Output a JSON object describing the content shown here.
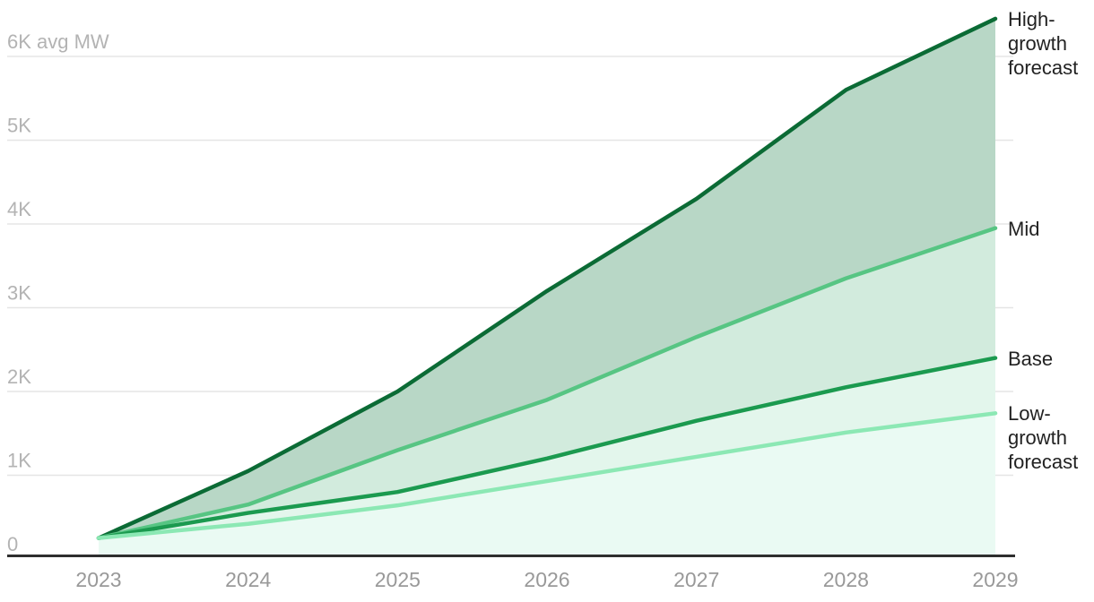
{
  "chart_data": {
    "type": "area",
    "title": "",
    "xlabel": "",
    "ylabel": "avg MW",
    "x": [
      2023,
      2024,
      2025,
      2026,
      2027,
      2028,
      2029
    ],
    "x_tick_labels": [
      "2023",
      "2024",
      "2025",
      "2026",
      "2027",
      "2028",
      "2029"
    ],
    "y_ticks": [
      {
        "value": 0,
        "label": "0"
      },
      {
        "value": 1000,
        "label": "1K"
      },
      {
        "value": 2000,
        "label": "2K"
      },
      {
        "value": 3000,
        "label": "3K"
      },
      {
        "value": 4000,
        "label": "4K"
      },
      {
        "value": 5000,
        "label": "5K"
      },
      {
        "value": 6000,
        "label": "6K avg MW"
      }
    ],
    "ylim": [
      0,
      6600
    ],
    "grid": true,
    "legend_position": "right-end-labels",
    "series": [
      {
        "name": "High-growth forecast",
        "values": [
          250,
          1050,
          2000,
          3200,
          4300,
          5600,
          6450
        ],
        "line_color": "#0b6b35"
      },
      {
        "name": "Mid",
        "values": [
          250,
          650,
          1300,
          1900,
          2650,
          3350,
          3950
        ],
        "line_color": "#57c583"
      },
      {
        "name": "Base",
        "values": [
          250,
          550,
          800,
          1200,
          1650,
          2050,
          2400
        ],
        "line_color": "#1b9a4f"
      },
      {
        "name": "Low-growth forecast",
        "values": [
          250,
          420,
          640,
          930,
          1220,
          1510,
          1740
        ],
        "line_color": "#8ce8b4"
      }
    ],
    "band_fills": [
      "#b8d7c6",
      "#d2ebdd",
      "#e3f6ec",
      "#eafaf3"
    ],
    "colors": {
      "grid_line": "#e5e5e5",
      "axis_line": "#2e2e2e",
      "y_tick_label": "#b3b3b3",
      "x_tick_label": "#999999",
      "annotation_text": "#222222",
      "background": "#ffffff"
    }
  }
}
